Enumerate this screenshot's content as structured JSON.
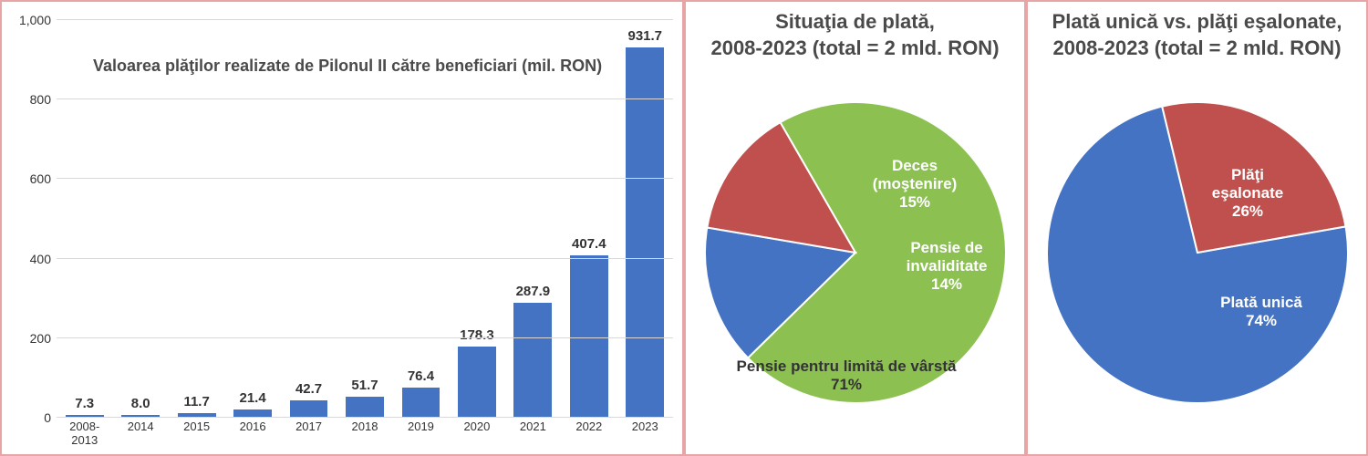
{
  "bar_chart": {
    "type": "bar",
    "title": "Valoarea plăţilor realizate de Pilonul II către beneficiari (mil. RON)",
    "categories": [
      "2008-2013",
      "2014",
      "2015",
      "2016",
      "2017",
      "2018",
      "2019",
      "2020",
      "2021",
      "2022",
      "2023"
    ],
    "values": [
      7.3,
      8.0,
      11.7,
      21.4,
      42.7,
      51.7,
      76.4,
      178.3,
      287.9,
      407.4,
      931.7
    ],
    "value_labels": [
      "7.3",
      "8.0",
      "11.7",
      "21.4",
      "42.7",
      "51.7",
      "76.4",
      "178.3",
      "287.9",
      "407.4",
      "931.7"
    ],
    "bar_color": "#4473c4",
    "ylim": [
      0,
      1000
    ],
    "yticks": [
      0,
      200,
      400,
      600,
      800,
      1000
    ],
    "ytick_labels": [
      "0",
      "200",
      "400",
      "600",
      "800",
      "1,000"
    ],
    "grid_color": "#d9d9d9",
    "background_color": "#ffffff",
    "title_fontsize": 18,
    "label_fontsize": 14,
    "value_fontsize": 15
  },
  "pie1": {
    "type": "pie",
    "title_line1": "Situaţia de plată,",
    "title_line2": "2008-2023 (total = 2 mld. RON)",
    "slices": [
      {
        "label_line1": "Pensie pentru limită de vârstă",
        "label_line2": "71%",
        "value": 71,
        "color": "#8cc152"
      },
      {
        "label_line1": "Deces",
        "label_line2": "(moştenire)",
        "label_line3": "15%",
        "value": 15,
        "color": "#4473c4"
      },
      {
        "label_line1": "Pensie de",
        "label_line2": "invaliditate",
        "label_line3": "14%",
        "value": 14,
        "color": "#c0504d"
      }
    ],
    "title_fontsize": 22,
    "label_fontsize": 17,
    "label_color_on_green": "#333333",
    "label_color_on_dark": "#ffffff"
  },
  "pie2": {
    "type": "pie",
    "title_line1": "Plată unică vs. plăţi eşalonate,",
    "title_line2": "2008-2023 (total = 2 mld. RON)",
    "slices": [
      {
        "label_line1": "Plată unică",
        "label_line2": "74%",
        "value": 74,
        "color": "#4473c4"
      },
      {
        "label_line1": "Plăţi",
        "label_line2": "eşalonate",
        "label_line3": "26%",
        "value": 26,
        "color": "#c0504d"
      }
    ],
    "title_fontsize": 22,
    "label_fontsize": 17
  },
  "frame_color": "#e8a5a5"
}
